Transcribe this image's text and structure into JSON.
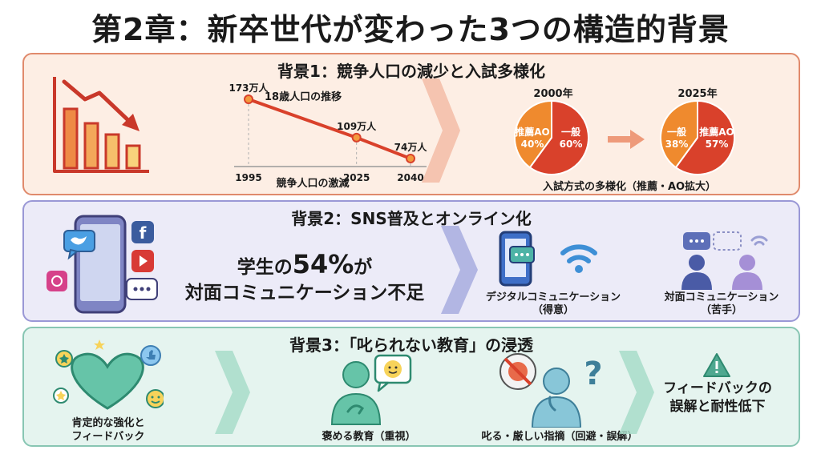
{
  "title": "第2章：新卒世代が変わった3つの構造的背景",
  "panel1": {
    "heading": "背景1：競争人口の減少と入試多様化",
    "chart_data": {
      "type": "line",
      "title": "18歳人口の推移",
      "xlabel": "競争人口の激減",
      "x": [
        1995,
        2025,
        2040
      ],
      "categories": [
        "1995",
        "2025",
        "2040"
      ],
      "values": [
        173,
        109,
        74
      ],
      "value_labels": [
        "173万人",
        "109万人",
        "74万人"
      ],
      "unit": "万人"
    },
    "pies": [
      {
        "year": "2000年",
        "slices": [
          {
            "label": "推薦AO",
            "pct": "40%",
            "value": 40,
            "color": "#ef8a2e"
          },
          {
            "label": "一般",
            "pct": "60%",
            "value": 60,
            "color": "#d9412b"
          }
        ]
      },
      {
        "year": "2025年",
        "slices": [
          {
            "label": "一般",
            "pct": "38%",
            "value": 38,
            "color": "#ef8a2e"
          },
          {
            "label": "推薦AO",
            "pct": "57%",
            "value": 57,
            "color": "#d9412b"
          }
        ]
      }
    ],
    "pie_caption": "入試方式の多様化（推薦・AO拡大）"
  },
  "panel2": {
    "heading": "背景2：SNS普及とオンライン化",
    "stat_pre": "学生の",
    "stat_num": "54%",
    "stat_post": "が",
    "stat_line2": "対面コミュニケーション不足",
    "digital_label": "デジタルコミュニケーション",
    "digital_sub": "（得意）",
    "face_label": "対面コミュニケーション",
    "face_sub": "（苦手）",
    "sns_f": "f"
  },
  "panel3": {
    "heading": "背景3：「叱られない教育」の浸透",
    "left_label_1": "肯定的な強化と",
    "left_label_2": "フィードバック",
    "praise_label": "褒める教育（重視）",
    "scold_label": "叱る・厳しい指摘（回避・誤解）",
    "result_1": "フィードバックの",
    "result_2": "誤解と耐性低下",
    "question_mark": "?"
  }
}
